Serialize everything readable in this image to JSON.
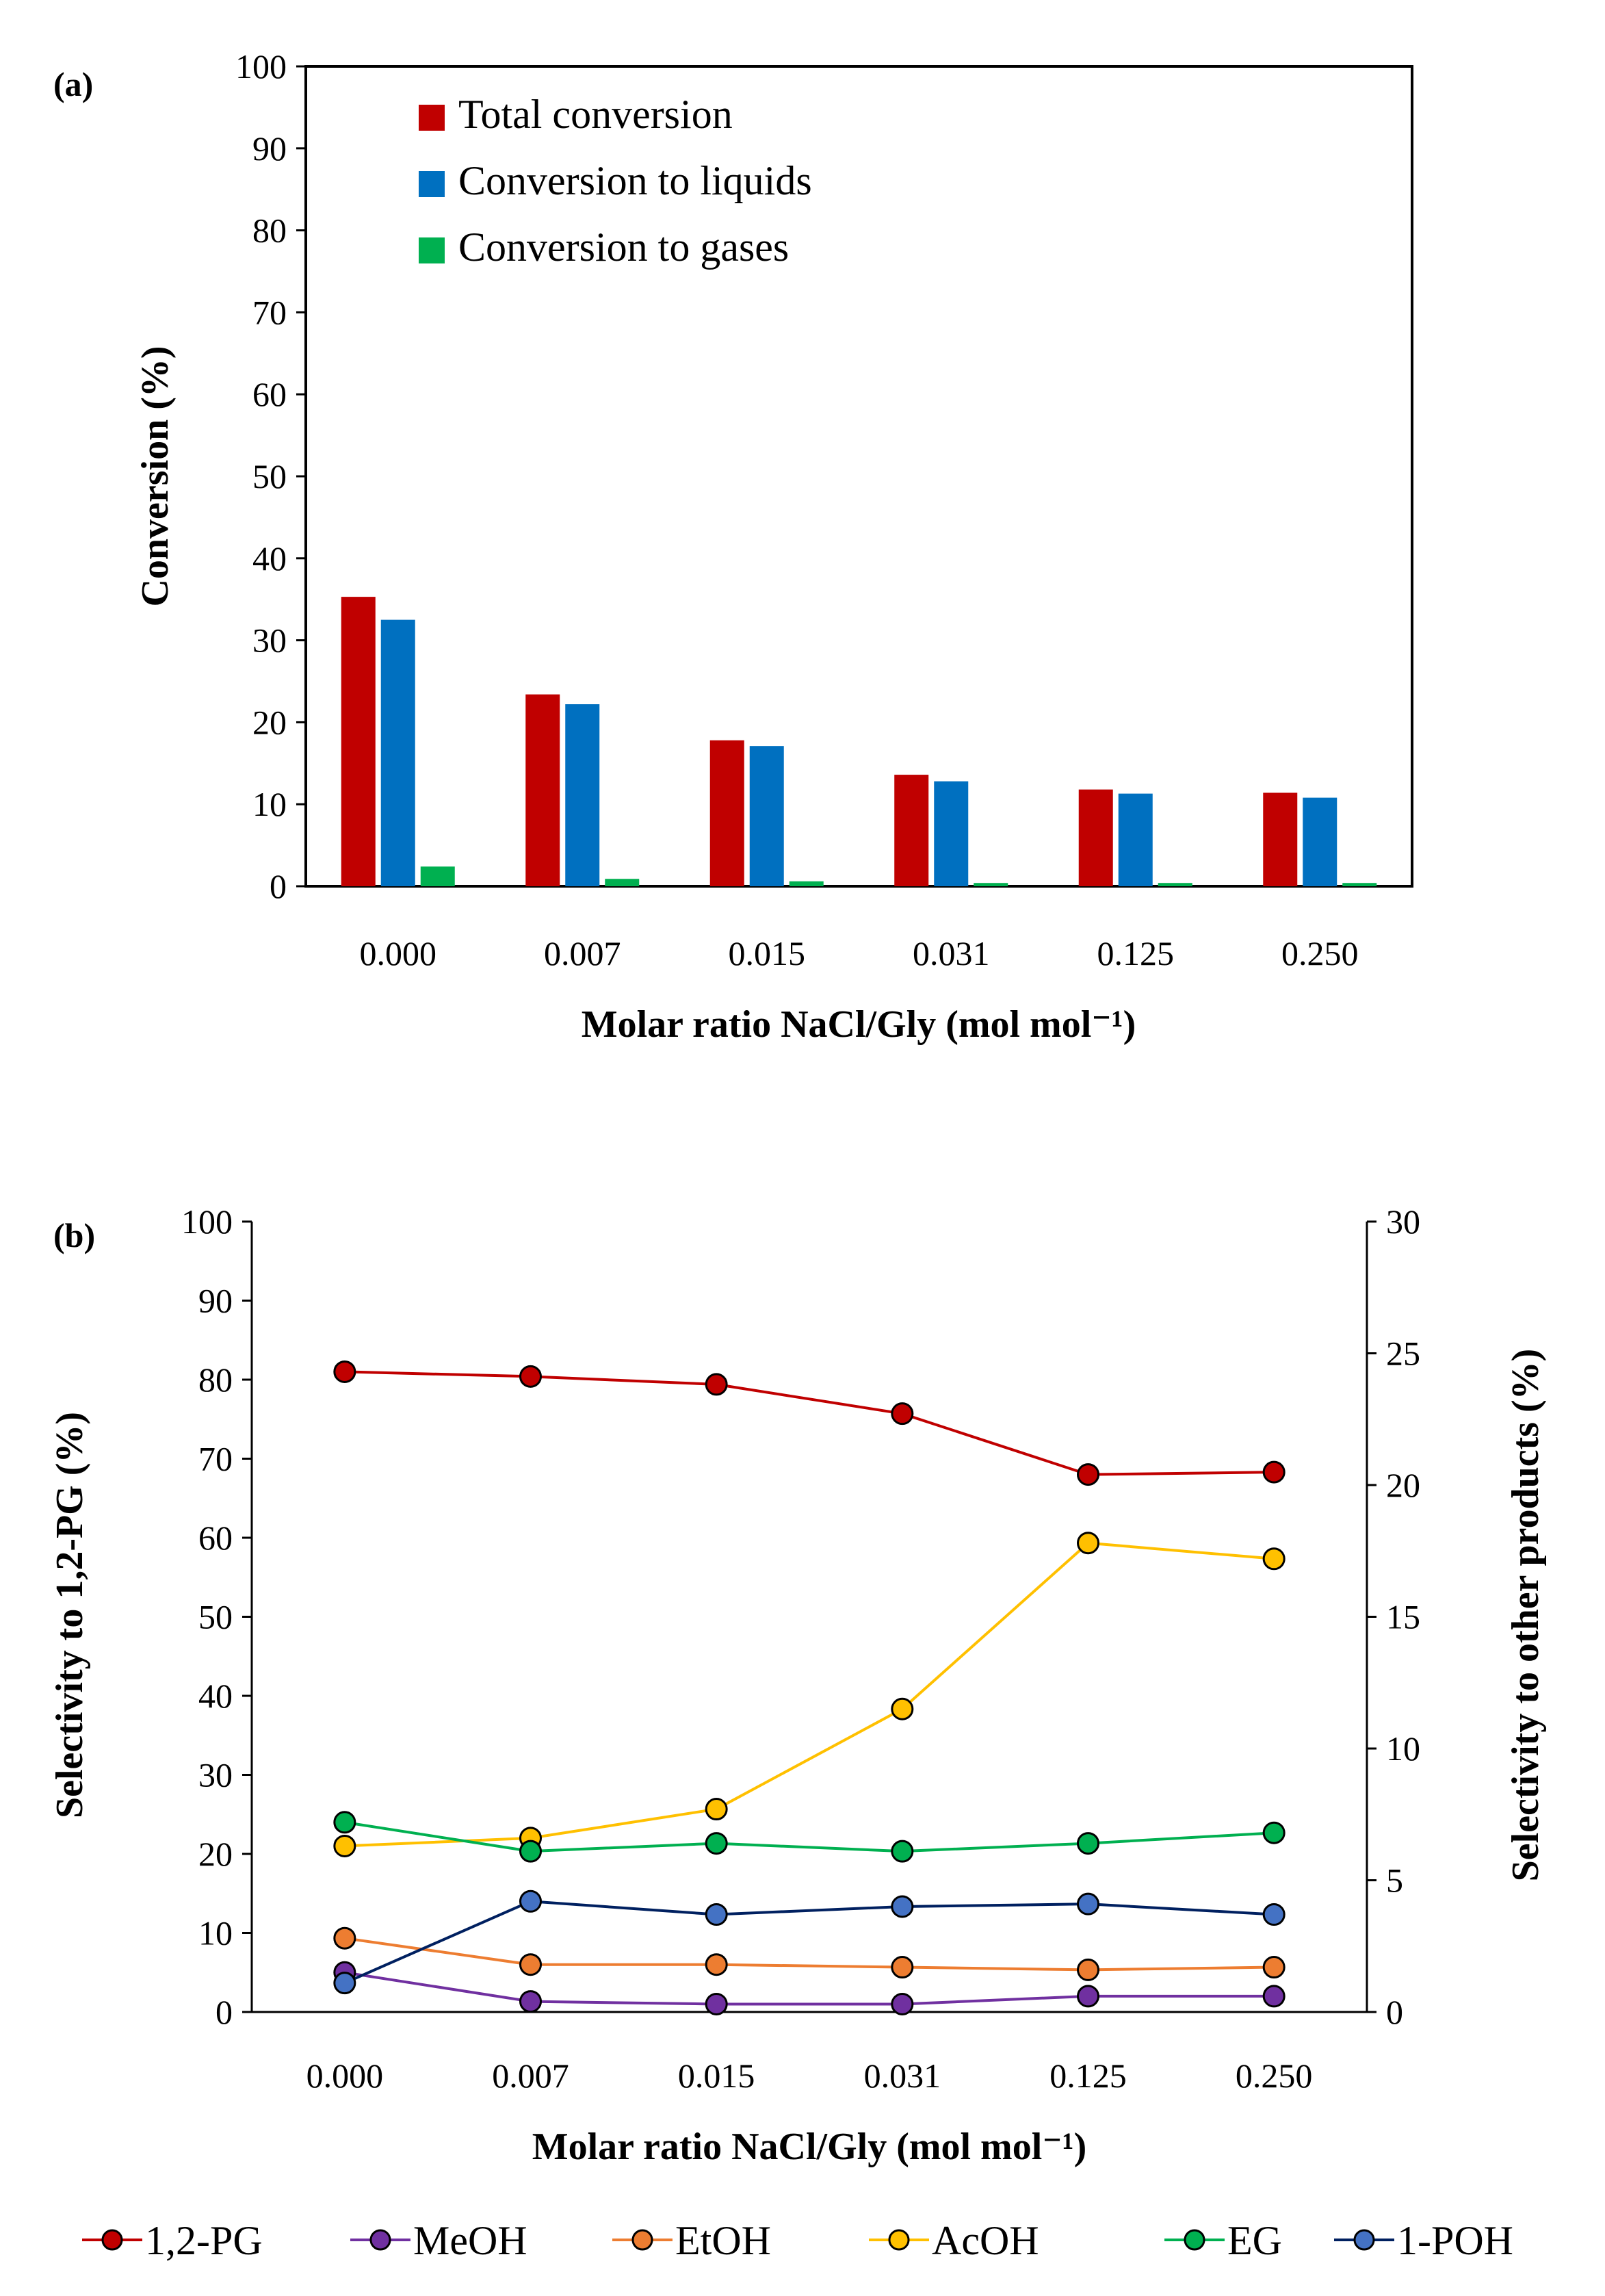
{
  "chart_data": [
    {
      "panel_label": "(a)",
      "type": "bar",
      "title": "",
      "xlabel": "Molar ratio NaCl/Gly (mol mol⁻¹)",
      "ylabel": "Conversion (%)",
      "ylim": [
        0,
        100
      ],
      "yticks": [
        "0",
        "10",
        "20",
        "30",
        "40",
        "50",
        "60",
        "70",
        "80",
        "90",
        "100"
      ],
      "categories": [
        "0.000",
        "0.007",
        "0.015",
        "0.031",
        "0.125",
        "0.250"
      ],
      "grid": false,
      "legend_position": "top-left",
      "series": [
        {
          "name": "Total conversion",
          "color": "#c00000",
          "values": [
            35.3,
            23.4,
            17.8,
            13.6,
            11.8,
            11.4
          ]
        },
        {
          "name": "Conversion to liquids",
          "color": "#0070c0",
          "values": [
            32.5,
            22.2,
            17.1,
            12.8,
            11.3,
            10.8
          ]
        },
        {
          "name": "Conversion to gases",
          "color": "#00b050",
          "values": [
            2.4,
            0.9,
            0.6,
            0.4,
            0.4,
            0.4
          ]
        }
      ]
    },
    {
      "panel_label": "(b)",
      "type": "line",
      "title": "",
      "xlabel": "Molar ratio NaCl/Gly (mol mol⁻¹)",
      "ylabel": "Selectivity to 1,2-PG (%)",
      "y2label": "Selectivity to other products (%)",
      "ylim": [
        0,
        100
      ],
      "y2lim": [
        0,
        30
      ],
      "yticks": [
        "0",
        "10",
        "20",
        "30",
        "40",
        "50",
        "60",
        "70",
        "80",
        "90",
        "100"
      ],
      "y2ticks": [
        "0",
        "5",
        "10",
        "15",
        "20",
        "25",
        "30"
      ],
      "categories": [
        "0.000",
        "0.007",
        "0.015",
        "0.031",
        "0.125",
        "0.250"
      ],
      "grid": false,
      "legend_position": "bottom",
      "series": [
        {
          "name": "1,2-PG",
          "axis": "left",
          "line_color": "#c00000",
          "marker_color": "#c00000",
          "values": [
            81.0,
            80.4,
            79.4,
            75.7,
            68.0,
            68.3
          ]
        },
        {
          "name": "MeOH",
          "axis": "right",
          "line_color": "#7030a0",
          "marker_color": "#7030a0",
          "values": [
            1.5,
            0.4,
            0.3,
            0.3,
            0.6,
            0.6
          ]
        },
        {
          "name": "EtOH",
          "axis": "right",
          "line_color": "#ed7d31",
          "marker_color": "#ed7d31",
          "values": [
            2.8,
            1.8,
            1.8,
            1.7,
            1.6,
            1.7
          ]
        },
        {
          "name": "AcOH",
          "axis": "right",
          "line_color": "#ffc000",
          "marker_color": "#ffc000",
          "values": [
            6.3,
            6.6,
            7.7,
            11.5,
            17.8,
            17.2
          ]
        },
        {
          "name": "EG",
          "axis": "right",
          "line_color": "#00b050",
          "marker_color": "#00b050",
          "values": [
            7.2,
            6.1,
            6.4,
            6.1,
            6.4,
            6.8
          ]
        },
        {
          "name": "1-POH",
          "axis": "right",
          "line_color": "#002060",
          "marker_color": "#4472c4",
          "values": [
            1.1,
            4.2,
            3.7,
            4.0,
            4.1,
            3.7
          ]
        }
      ]
    }
  ]
}
